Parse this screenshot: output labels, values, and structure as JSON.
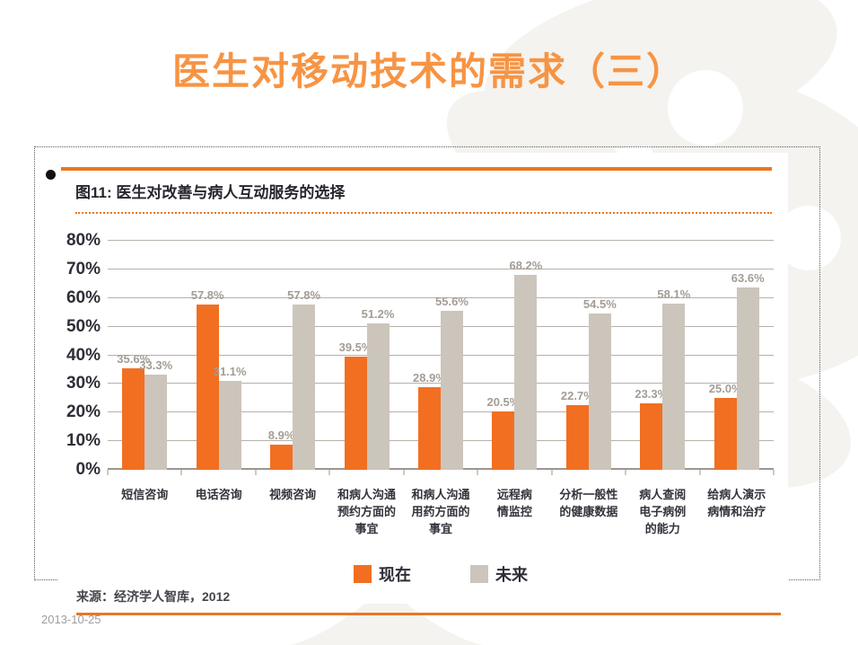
{
  "slide": {
    "title": "医生对移动技术的需求（三）",
    "date": "2013-10-25",
    "title_color": "#f79443",
    "accent_color": "#e87722"
  },
  "figure": {
    "title": "图11: 医生对改善与病人互动服务的选择",
    "source": "来源：经济学人智库，2012"
  },
  "chart_data": {
    "type": "bar",
    "title": "图11: 医生对改善与病人互动服务的选择",
    "categories": [
      "短信咨询",
      "电话咨询",
      "视频咨询",
      "和病人沟通\n预约方面的\n事宜",
      "和病人沟通\n用药方面的\n事宜",
      "远程病\n情监控",
      "分析一般性\n的健康数据",
      "病人查阅\n电子病例\n的能力",
      "给病人演示\n病情和治疗"
    ],
    "series": [
      {
        "name": "现在",
        "color": "#f26f21",
        "values": [
          35.6,
          57.8,
          8.9,
          39.5,
          28.9,
          20.5,
          22.7,
          23.3,
          25.0
        ]
      },
      {
        "name": "未来",
        "color": "#ccc5bc",
        "values": [
          33.3,
          31.1,
          57.8,
          51.2,
          55.6,
          68.2,
          54.5,
          58.1,
          63.6
        ]
      }
    ],
    "xlabel": "",
    "ylabel": "",
    "ylim": [
      0,
      80
    ],
    "ytick_step": 10,
    "ytick_suffix": "%",
    "grid": true,
    "legend_position": "bottom",
    "source": "来源：经济学人智库，2012"
  }
}
